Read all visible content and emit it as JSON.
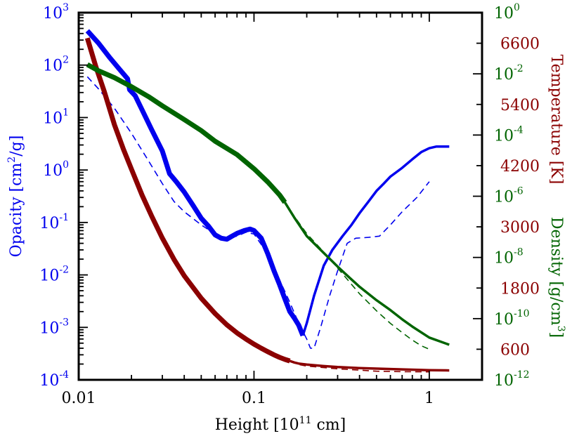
{
  "chart_data": {
    "type": "line",
    "colors": {
      "opacity": "#0000ee",
      "temperature": "#8b0000",
      "density": "#006400",
      "frame": "#000000"
    },
    "x": {
      "label_main": "Height [10",
      "label_sup": "11",
      "label_tail": " cm]",
      "scale": "log",
      "range": [
        0.01,
        2.0
      ],
      "tick_values": [
        0.01,
        0.1,
        1
      ],
      "tick_labels": [
        "0.01",
        "0.1",
        "1"
      ]
    },
    "y_left": {
      "label_main": "Opacity [cm",
      "label_sup": "2",
      "label_tail": "/g]",
      "scale": "log",
      "range": [
        0.0001,
        1000.0
      ],
      "tick_exponents": [
        -4,
        -3,
        -2,
        -1,
        0,
        1,
        2,
        3
      ],
      "tick_base": "10"
    },
    "y_right_temperature": {
      "label": "Temperature [K]",
      "scale": "linear",
      "range": [
        0,
        7200
      ],
      "tick_values": [
        600,
        1800,
        3000,
        4200,
        5400,
        6600
      ],
      "tick_labels": [
        "600",
        "1800",
        "3000",
        "4200",
        "5400",
        "6600"
      ]
    },
    "y_right_density": {
      "label_main": "Density [g/cm",
      "label_sup": "3",
      "label_tail": "]",
      "scale": "log",
      "range": [
        1e-12,
        1
      ],
      "tick_exponents": [
        -12,
        -10,
        -8,
        -6,
        -4,
        -2,
        0
      ],
      "tick_base": "10"
    },
    "series": [
      {
        "axis": "y_left",
        "color_key": "opacity",
        "style": "thick",
        "x": [
          0.0112,
          0.013,
          0.015,
          0.017,
          0.019,
          0.0195,
          0.021,
          0.023,
          0.026,
          0.03,
          0.033,
          0.036,
          0.04,
          0.045,
          0.05,
          0.055,
          0.06,
          0.065,
          0.07,
          0.075,
          0.08,
          0.088,
          0.095,
          0.1,
          0.11,
          0.12,
          0.13,
          0.14,
          0.15,
          0.16,
          0.17,
          0.18,
          0.19
        ],
        "y": [
          450,
          260,
          140,
          85,
          55,
          34,
          26,
          14,
          6.0,
          2.3,
          0.85,
          0.6,
          0.38,
          0.21,
          0.12,
          0.085,
          0.058,
          0.05,
          0.048,
          0.055,
          0.062,
          0.07,
          0.075,
          0.07,
          0.05,
          0.025,
          0.012,
          0.0065,
          0.0035,
          0.002,
          0.0015,
          0.0011,
          0.0007
        ]
      },
      {
        "axis": "y_left",
        "color_key": "opacity",
        "style": "medium",
        "x": [
          0.19,
          0.2,
          0.22,
          0.25,
          0.28,
          0.32,
          0.36,
          0.4,
          0.45,
          0.5,
          0.55,
          0.6,
          0.7,
          0.8,
          0.9,
          1.0,
          1.1,
          1.2,
          1.3
        ],
        "y": [
          0.0007,
          0.0012,
          0.004,
          0.015,
          0.03,
          0.055,
          0.09,
          0.15,
          0.25,
          0.4,
          0.55,
          0.75,
          1.1,
          1.6,
          2.2,
          2.6,
          2.8,
          2.8,
          2.8
        ]
      },
      {
        "axis": "y_left",
        "color_key": "opacity",
        "style": "dashed",
        "x": [
          0.0112,
          0.013,
          0.016,
          0.02,
          0.025,
          0.03,
          0.035,
          0.04,
          0.05,
          0.06,
          0.07,
          0.08,
          0.09,
          0.1,
          0.12,
          0.14,
          0.16,
          0.18,
          0.2,
          0.21,
          0.22,
          0.24,
          0.27,
          0.3,
          0.34,
          0.38,
          0.45,
          0.52,
          0.6,
          0.7,
          0.85,
          1.0
        ],
        "y": [
          60,
          35,
          15,
          5,
          1.5,
          0.55,
          0.25,
          0.16,
          0.09,
          0.06,
          0.05,
          0.055,
          0.065,
          0.06,
          0.025,
          0.008,
          0.003,
          0.0012,
          0.0006,
          0.0004,
          0.0004,
          0.001,
          0.004,
          0.012,
          0.04,
          0.05,
          0.052,
          0.055,
          0.09,
          0.16,
          0.3,
          0.6
        ]
      },
      {
        "axis": "y_right_temperature",
        "color_key": "temperature",
        "style": "thick",
        "x": [
          0.0112,
          0.0125,
          0.014,
          0.016,
          0.018,
          0.02,
          0.023,
          0.026,
          0.03,
          0.035,
          0.04,
          0.05,
          0.06,
          0.07,
          0.08,
          0.09,
          0.1,
          0.11,
          0.12,
          0.13,
          0.14,
          0.15,
          0.16
        ],
        "y": [
          6700,
          6150,
          5650,
          5000,
          4520,
          4130,
          3620,
          3220,
          2780,
          2360,
          2040,
          1600,
          1300,
          1080,
          920,
          800,
          700,
          620,
          550,
          490,
          440,
          400,
          370
        ]
      },
      {
        "axis": "y_right_temperature",
        "color_key": "temperature",
        "style": "medium",
        "x": [
          0.16,
          0.17,
          0.18,
          0.2,
          0.25,
          0.3,
          0.4,
          0.5,
          0.7,
          1.0,
          1.3
        ],
        "y": [
          370,
          340,
          320,
          300,
          270,
          250,
          230,
          220,
          205,
          190,
          185
        ]
      },
      {
        "axis": "y_right_temperature",
        "color_key": "temperature",
        "style": "dashed",
        "x": [
          0.16,
          0.17,
          0.18,
          0.2,
          0.25,
          0.3,
          0.4,
          0.5,
          0.7,
          1.0
        ],
        "y": [
          370,
          330,
          300,
          270,
          240,
          215,
          190,
          170,
          160,
          155
        ]
      },
      {
        "axis": "y_right_density",
        "color_key": "density",
        "style": "thick",
        "x": [
          0.0112,
          0.013,
          0.016,
          0.02,
          0.025,
          0.03,
          0.04,
          0.05,
          0.06,
          0.08,
          0.1,
          0.12,
          0.14,
          0.15
        ],
        "y": [
          0.02,
          0.0125,
          0.0075,
          0.0038,
          0.0018,
          0.0009,
          0.00032,
          0.00014,
          6.3e-05,
          2.3e-05,
          7.9e-06,
          2.9e-06,
          1.1e-06,
          6.3e-07
        ]
      },
      {
        "axis": "y_right_density",
        "color_key": "density",
        "style": "medium",
        "x": [
          0.15,
          0.17,
          0.2,
          0.25,
          0.3,
          0.35,
          0.4,
          0.5,
          0.6,
          0.7,
          0.8,
          1.0,
          1.3
        ],
        "y": [
          6.3e-07,
          2e-07,
          5e-08,
          1.4e-08,
          5e-09,
          2.2e-09,
          1.1e-09,
          4e-10,
          1.9e-10,
          9.5e-11,
          5.5e-11,
          2.4e-11,
          1.4e-11
        ]
      },
      {
        "axis": "y_right_density",
        "color_key": "density",
        "style": "dashed",
        "x": [
          0.15,
          0.17,
          0.2,
          0.25,
          0.3,
          0.35,
          0.4,
          0.5,
          0.6,
          0.7,
          0.8,
          0.9,
          1.0
        ],
        "y": [
          6.3e-07,
          2.2e-07,
          6e-08,
          1.5e-08,
          4.5e-09,
          1.6e-09,
          6.5e-10,
          1.8e-10,
          7e-11,
          3.5e-11,
          2e-11,
          1.3e-11,
          1e-11
        ]
      }
    ]
  }
}
